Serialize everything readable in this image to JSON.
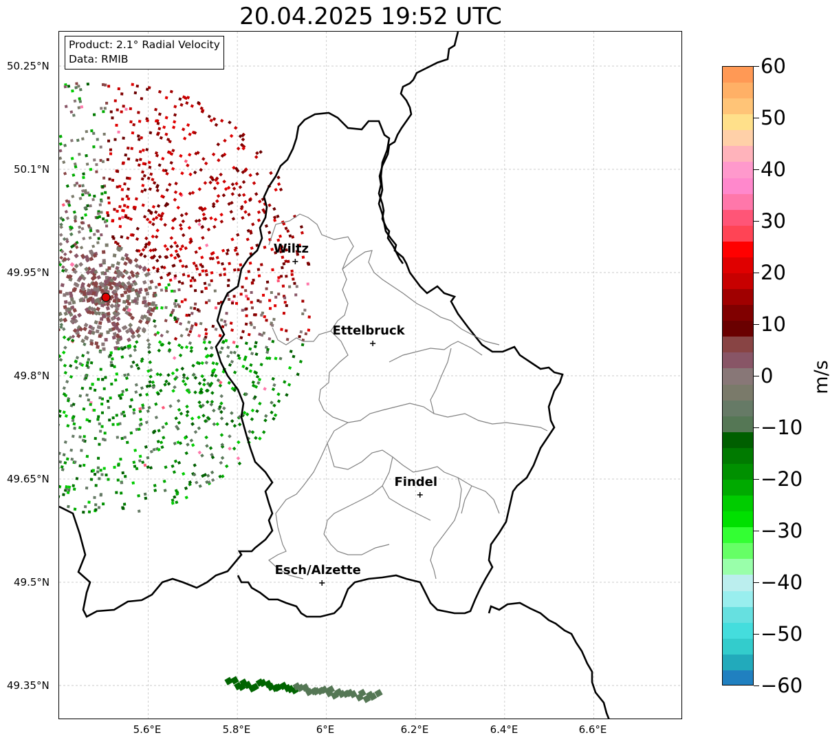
{
  "title": "20.04.2025 19:52 UTC",
  "info": {
    "product": "Product: 2.1° Radial Velocity",
    "data": "Data: RMIB"
  },
  "axes": {
    "lat_ticks": [
      "50.25°N",
      "50.1°N",
      "49.95°N",
      "49.8°N",
      "49.65°N",
      "49.5°N",
      "49.35°N"
    ],
    "lon_ticks": [
      "5.6°E",
      "5.8°E",
      "6°E",
      "6.2°E",
      "6.4°E",
      "6.6°E"
    ],
    "lat_range": [
      49.3,
      50.3
    ],
    "lon_range": [
      5.4,
      6.8
    ],
    "grid": true
  },
  "cities": [
    {
      "name": "Wiltz",
      "lon": 5.93,
      "lat": 49.966
    },
    {
      "name": "Ettelbruck",
      "lon": 6.104,
      "lat": 49.847
    },
    {
      "name": "Findel",
      "lon": 6.21,
      "lat": 49.627
    },
    {
      "name": "Esch/Alzette",
      "lon": 5.99,
      "lat": 49.499
    }
  ],
  "radar": {
    "lon": 5.505,
    "lat": 49.914,
    "marker_color": "#e00000"
  },
  "colorbar": {
    "unit": "m/s",
    "min": -60,
    "max": 60,
    "ticks": [
      "60",
      "50",
      "40",
      "30",
      "20",
      "10",
      "0",
      "−10",
      "−20",
      "−30",
      "−40",
      "−50",
      "−60"
    ],
    "colors_top_to_bottom": [
      "#ff9955",
      "#ffb066",
      "#ffc477",
      "#ffe08a",
      "#ffd0a8",
      "#ffb3bb",
      "#ff99cc",
      "#ff88cc",
      "#ff77aa",
      "#ff5577",
      "#ff4455",
      "#ff0000",
      "#e00000",
      "#c80000",
      "#a00000",
      "#800000",
      "#6a0000",
      "#884444",
      "#885566",
      "#887777",
      "#7a7a6a",
      "#667a66",
      "#557755",
      "#005f00",
      "#007a00",
      "#009000",
      "#00aa00",
      "#00cc00",
      "#00e000",
      "#33ff33",
      "#66ff66",
      "#99ffaa",
      "#bbeeee",
      "#99eeee",
      "#66e0e0",
      "#44dddd",
      "#33cccc",
      "#22aabb",
      "#2080c0"
    ]
  }
}
